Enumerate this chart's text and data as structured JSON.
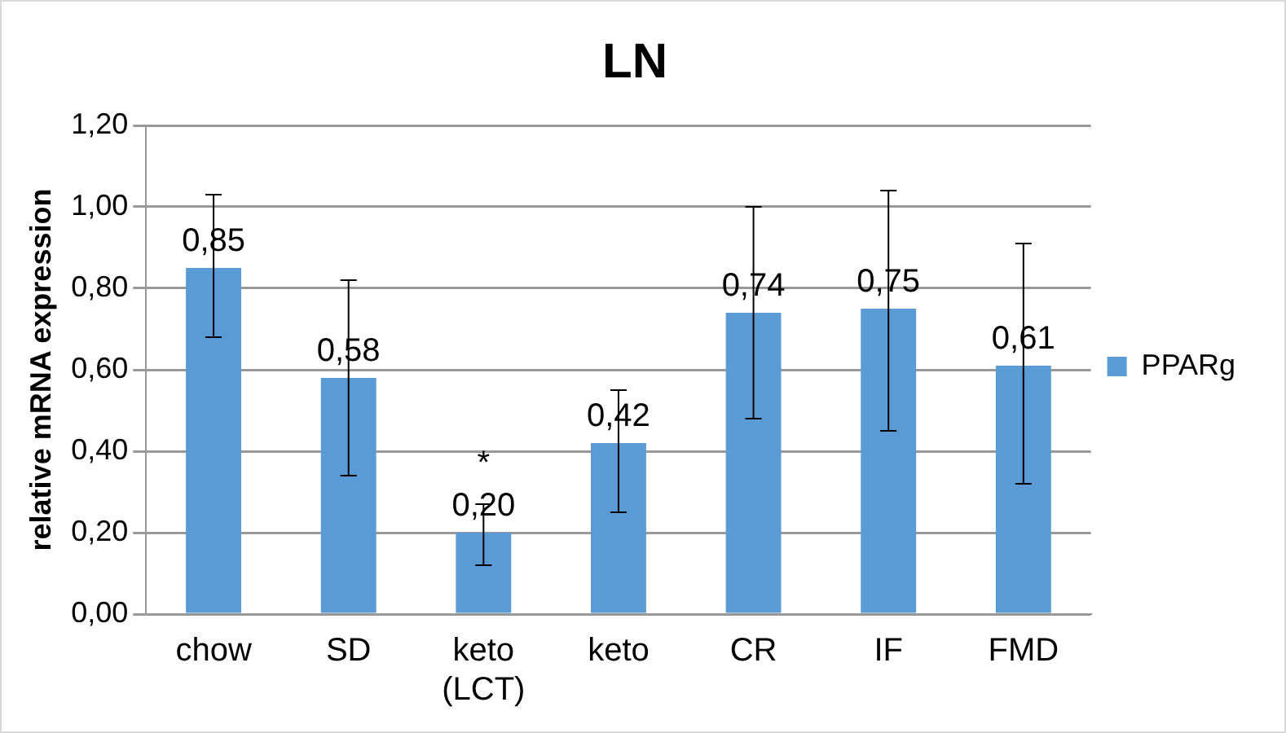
{
  "chart_data": {
    "type": "bar",
    "title": "LN",
    "ylabel": "relative mRNA expression",
    "categories": [
      "chow",
      "SD",
      "keto (LCT)",
      "keto",
      "CR",
      "IF",
      "FMD"
    ],
    "series": [
      {
        "name": "PPARg",
        "color": "#5b9bd5",
        "values": [
          0.85,
          0.58,
          0.2,
          0.42,
          0.74,
          0.75,
          0.61
        ],
        "errors": [
          [
            0.68,
            1.03
          ],
          [
            0.34,
            0.82
          ],
          [
            0.12,
            0.27
          ],
          [
            0.25,
            0.55
          ],
          [
            0.48,
            1.0
          ],
          [
            0.45,
            1.04
          ],
          [
            0.32,
            0.91
          ]
        ],
        "value_labels": [
          "0,85",
          "0,58",
          "0,20",
          "0,42",
          "0,74",
          "0,75",
          "0,61"
        ]
      }
    ],
    "ylim": [
      0,
      1.2
    ],
    "yticks": [
      {
        "value": 0,
        "label": "0,00"
      },
      {
        "value": 0.2,
        "label": "0,20"
      },
      {
        "value": 0.4,
        "label": "0,40"
      },
      {
        "value": 0.6,
        "label": "0,60"
      },
      {
        "value": 0.8,
        "label": "0,80"
      },
      {
        "value": 1.0,
        "label": "1,00"
      },
      {
        "value": 1.2,
        "label": "1,20"
      }
    ],
    "grid": "y",
    "legend": "right",
    "annotations": [
      "*"
    ]
  }
}
